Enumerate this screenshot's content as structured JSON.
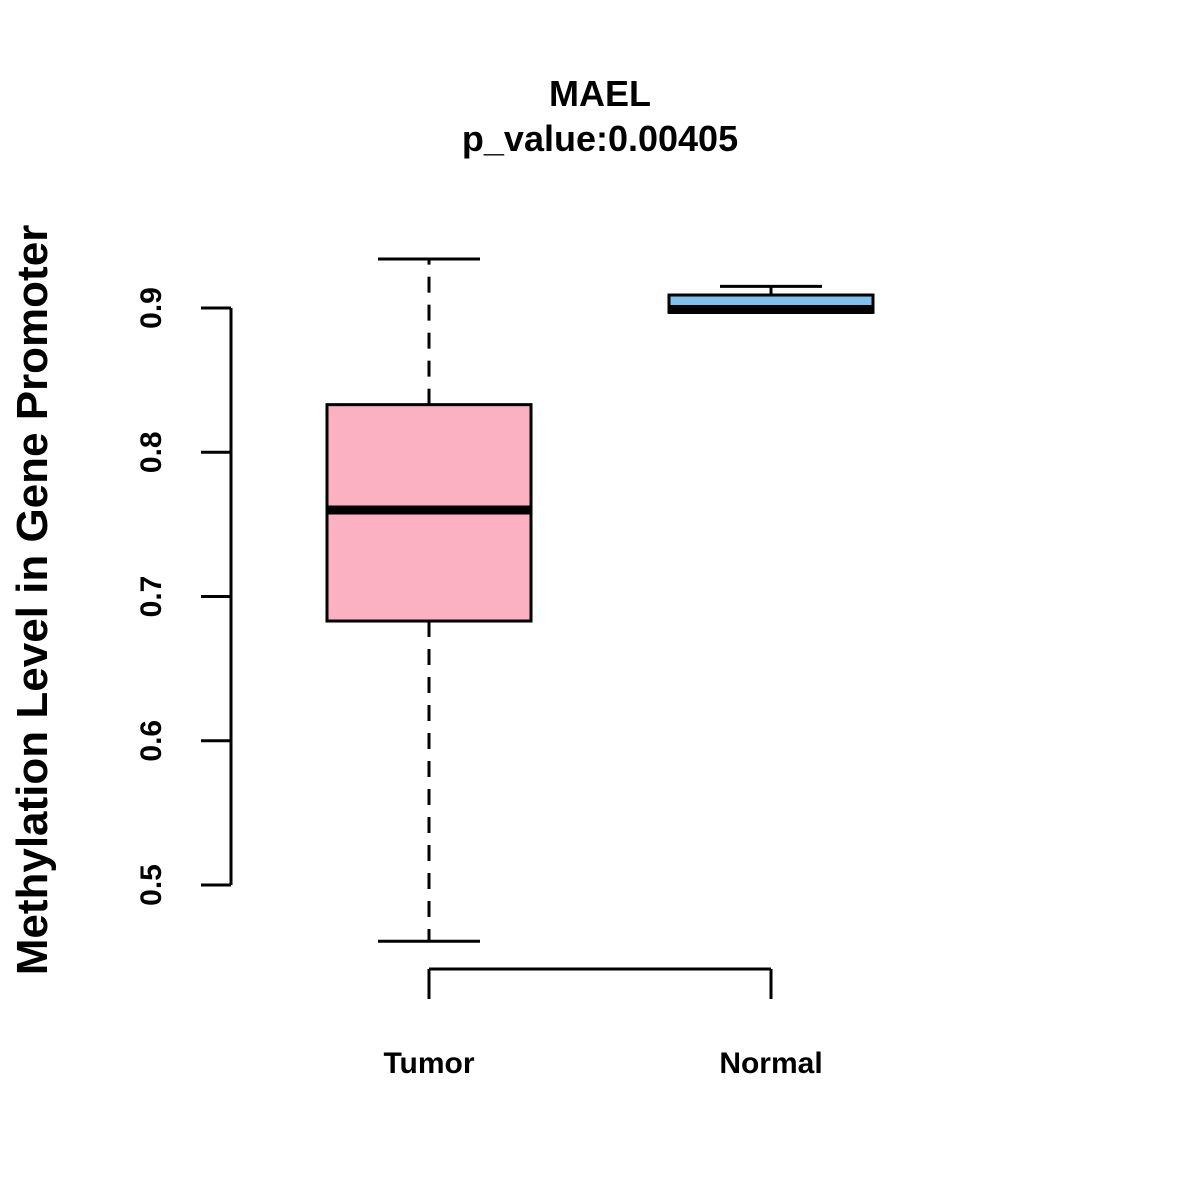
{
  "chart_data": {
    "type": "box",
    "title": "MAEL",
    "subtitle": "p_value:0.00405",
    "ylabel": "Methylation Level in Gene Promoter",
    "xlabel": "",
    "ylim": [
      0.5,
      0.9
    ],
    "yticks": [
      "0.5",
      "0.6",
      "0.7",
      "0.8",
      "0.9"
    ],
    "series": [
      {
        "name": "Tumor",
        "color": "#FBB1C1",
        "min": 0.461,
        "q1": 0.683,
        "median": 0.76,
        "q3": 0.833,
        "max": 0.934
      },
      {
        "name": "Normal",
        "color": "#7EC0EE",
        "min": 0.897,
        "q1": 0.897,
        "median": 0.899,
        "q3": 0.909,
        "max": 0.915
      }
    ]
  }
}
